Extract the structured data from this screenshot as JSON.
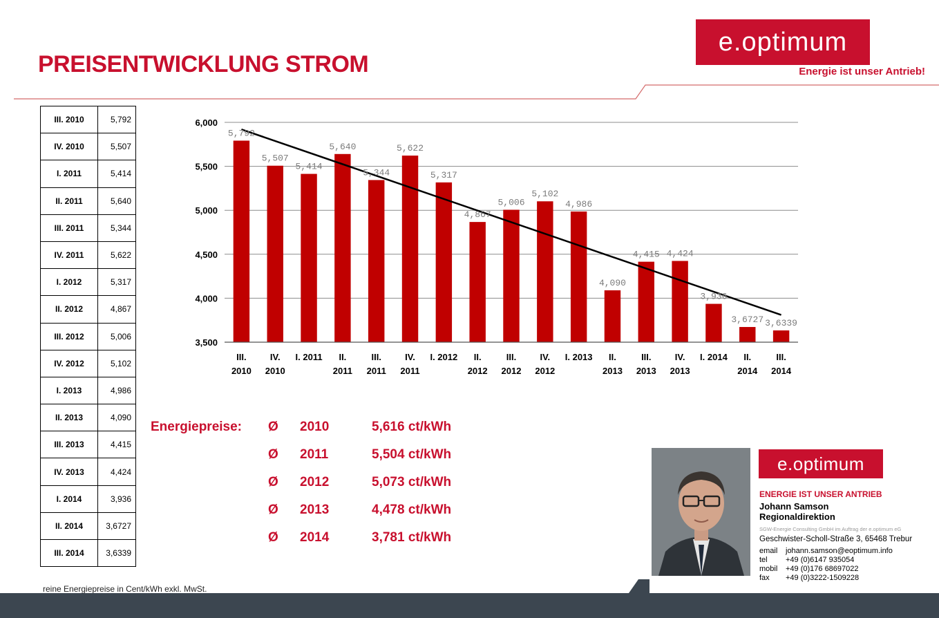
{
  "header": {
    "title": "PREISENTWICKLUNG STROM",
    "logo_text": "e.optimum",
    "slogan": "Energie ist unser Antrieb!"
  },
  "price_table": [
    {
      "quarter": "III. 2010",
      "value": "5,792"
    },
    {
      "quarter": "IV. 2010",
      "value": "5,507"
    },
    {
      "quarter": "I. 2011",
      "value": "5,414"
    },
    {
      "quarter": "II. 2011",
      "value": "5,640"
    },
    {
      "quarter": "III. 2011",
      "value": "5,344"
    },
    {
      "quarter": "IV. 2011",
      "value": "5,622"
    },
    {
      "quarter": "I. 2012",
      "value": "5,317"
    },
    {
      "quarter": "II. 2012",
      "value": "4,867"
    },
    {
      "quarter": "III. 2012",
      "value": "5,006"
    },
    {
      "quarter": "IV. 2012",
      "value": "5,102"
    },
    {
      "quarter": "I. 2013",
      "value": "4,986"
    },
    {
      "quarter": "II. 2013",
      "value": "4,090"
    },
    {
      "quarter": "III. 2013",
      "value": "4,415"
    },
    {
      "quarter": "IV. 2013",
      "value": "4,424"
    },
    {
      "quarter": "I. 2014",
      "value": "3,936"
    },
    {
      "quarter": "II. 2014",
      "value": "3,6727"
    },
    {
      "quarter": "III. 2014",
      "value": "3,6339"
    }
  ],
  "footnote": "reine Energiepreise in Cent/kWh exkl. MwSt.",
  "chart_data": {
    "type": "bar",
    "categories": [
      [
        "III.",
        "2010"
      ],
      [
        "IV.",
        "2010"
      ],
      [
        "I. 2011"
      ],
      [
        "II.",
        "2011"
      ],
      [
        "III.",
        "2011"
      ],
      [
        "IV.",
        "2011"
      ],
      [
        "I. 2012"
      ],
      [
        "II.",
        "2012"
      ],
      [
        "III.",
        "2012"
      ],
      [
        "IV.",
        "2012"
      ],
      [
        "I. 2013"
      ],
      [
        "II.",
        "2013"
      ],
      [
        "III.",
        "2013"
      ],
      [
        "IV.",
        "2013"
      ],
      [
        "I. 2014"
      ],
      [
        "II.",
        "2014"
      ],
      [
        "III.",
        "2014"
      ]
    ],
    "values": [
      5.792,
      5.507,
      5.414,
      5.64,
      5.344,
      5.622,
      5.317,
      4.867,
      5.006,
      5.102,
      4.986,
      4.09,
      4.415,
      4.424,
      3.936,
      3.6727,
      3.6339
    ],
    "value_labels": [
      "5,792",
      "5,507",
      "5,414",
      "5,640",
      "5,344",
      "5,622",
      "5,317",
      "4,867",
      "5,006",
      "5,102",
      "4,986",
      "4,090",
      "4,415",
      "4,424",
      "3,936",
      "3,6727",
      "3,6339"
    ],
    "ylim": [
      3.5,
      6.0
    ],
    "yticks": [
      3.5,
      4.0,
      4.5,
      5.0,
      5.5,
      6.0
    ],
    "ytick_labels": [
      "3,500",
      "4,000",
      "4,500",
      "5,000",
      "5,500",
      "6,000"
    ],
    "trendline": {
      "start": 5.92,
      "end": 3.81
    },
    "grid": true,
    "bar_color": "#c00000",
    "trend_color": "#000000"
  },
  "averages": {
    "label": "Energiepreise:",
    "symbol": "Ø",
    "rows": [
      {
        "year": "2010",
        "price": "5,616 ct/kWh"
      },
      {
        "year": "2011",
        "price": "5,504 ct/kWh"
      },
      {
        "year": "2012",
        "price": "5,073 ct/kWh"
      },
      {
        "year": "2013",
        "price": "4,478 ct/kWh"
      },
      {
        "year": "2014",
        "price": "3,781 ct/kWh"
      }
    ]
  },
  "contact_card": {
    "logo_text": "e.optimum",
    "slogan": "ENERGIE IST UNSER ANTRIEB",
    "name": "Johann Samson",
    "role": "Regionaldirektion",
    "company": "SGW-Energie Consulting GmbH im Auftrag der e.optimum eG",
    "address": "Geschwister-Scholl-Straße 3, 65468 Trebur",
    "contacts": [
      {
        "label": "email",
        "value": "johann.samson@eoptimum.info"
      },
      {
        "label": "tel",
        "value": "+49 (0)6147 935054"
      },
      {
        "label": "mobil",
        "value": "+49 (0)176 68697022"
      },
      {
        "label": "fax",
        "value": "+49 (0)3222-1509228"
      }
    ]
  },
  "colors": {
    "brand_red": "#c8102e",
    "bottom_bar": "#3c4650"
  }
}
